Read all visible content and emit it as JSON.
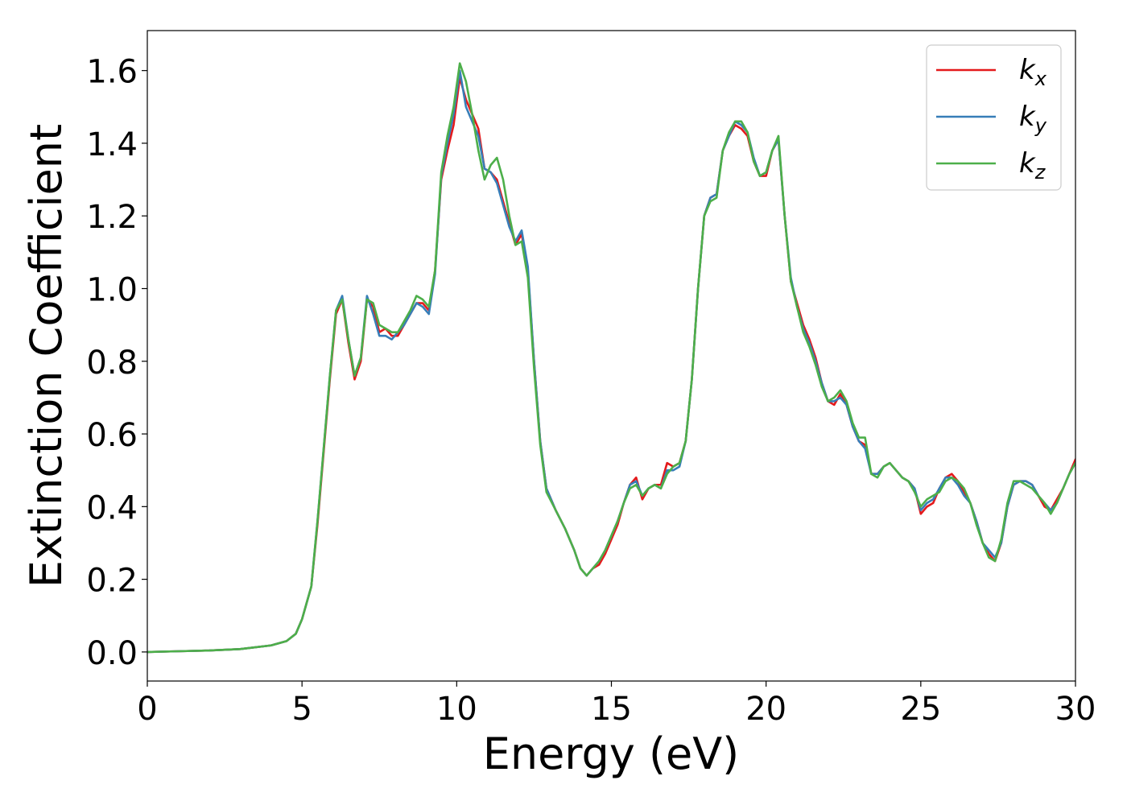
{
  "chart_data": {
    "type": "line",
    "xlabel": "Energy (eV)",
    "ylabel": "Extinction Coefficient",
    "xlim": [
      0,
      30
    ],
    "ylim": [
      -0.08,
      1.71
    ],
    "xticks": [
      0,
      5,
      10,
      15,
      20,
      25,
      30
    ],
    "xtick_labels": [
      "0",
      "5",
      "10",
      "15",
      "20",
      "25",
      "30"
    ],
    "yticks": [
      0.0,
      0.2,
      0.4,
      0.6,
      0.8,
      1.0,
      1.2,
      1.4,
      1.6
    ],
    "ytick_labels": [
      "0.0",
      "0.2",
      "0.4",
      "0.6",
      "0.8",
      "1.0",
      "1.2",
      "1.4",
      "1.6"
    ],
    "grid": false,
    "legend_position": "top-right",
    "x": [
      0,
      1,
      2,
      3,
      4,
      4.5,
      4.8,
      5.0,
      5.3,
      5.5,
      5.7,
      5.9,
      6.1,
      6.3,
      6.5,
      6.7,
      6.9,
      7.1,
      7.3,
      7.5,
      7.7,
      7.9,
      8.1,
      8.3,
      8.5,
      8.7,
      8.9,
      9.1,
      9.3,
      9.5,
      9.7,
      9.9,
      10.1,
      10.3,
      10.5,
      10.7,
      10.9,
      11.1,
      11.3,
      11.5,
      11.7,
      11.9,
      12.1,
      12.3,
      12.5,
      12.7,
      12.9,
      13.2,
      13.5,
      13.8,
      14.0,
      14.2,
      14.4,
      14.6,
      14.8,
      15.0,
      15.2,
      15.4,
      15.6,
      15.8,
      16.0,
      16.2,
      16.4,
      16.6,
      16.8,
      17.0,
      17.2,
      17.4,
      17.6,
      17.8,
      18.0,
      18.2,
      18.4,
      18.6,
      18.8,
      19.0,
      19.2,
      19.4,
      19.6,
      19.8,
      20.0,
      20.2,
      20.4,
      20.6,
      20.8,
      21.0,
      21.2,
      21.4,
      21.6,
      21.8,
      22.0,
      22.2,
      22.4,
      22.6,
      22.8,
      23.0,
      23.2,
      23.4,
      23.6,
      23.8,
      24.0,
      24.2,
      24.4,
      24.6,
      24.8,
      25.0,
      25.2,
      25.4,
      25.6,
      25.8,
      26.0,
      26.2,
      26.4,
      26.6,
      26.8,
      27.0,
      27.2,
      27.4,
      27.6,
      27.8,
      28.0,
      28.2,
      28.4,
      28.6,
      28.8,
      29.0,
      29.2,
      29.4,
      29.6,
      29.8,
      30.0
    ],
    "series": [
      {
        "name": "k_x",
        "color": "#e41a1c",
        "values": [
          0.0,
          0.002,
          0.004,
          0.008,
          0.018,
          0.03,
          0.05,
          0.09,
          0.18,
          0.35,
          0.55,
          0.75,
          0.93,
          0.97,
          0.85,
          0.75,
          0.8,
          0.97,
          0.95,
          0.88,
          0.89,
          0.87,
          0.87,
          0.9,
          0.93,
          0.96,
          0.96,
          0.94,
          1.05,
          1.3,
          1.38,
          1.45,
          1.58,
          1.52,
          1.48,
          1.44,
          1.33,
          1.32,
          1.3,
          1.24,
          1.18,
          1.12,
          1.15,
          1.05,
          0.8,
          0.58,
          0.45,
          0.39,
          0.34,
          0.28,
          0.23,
          0.21,
          0.23,
          0.24,
          0.27,
          0.31,
          0.35,
          0.41,
          0.46,
          0.48,
          0.42,
          0.45,
          0.46,
          0.46,
          0.52,
          0.51,
          0.52,
          0.58,
          0.75,
          1.0,
          1.2,
          1.25,
          1.26,
          1.38,
          1.42,
          1.45,
          1.44,
          1.42,
          1.35,
          1.31,
          1.31,
          1.38,
          1.41,
          1.2,
          1.02,
          0.96,
          0.9,
          0.86,
          0.81,
          0.74,
          0.69,
          0.68,
          0.71,
          0.68,
          0.62,
          0.58,
          0.57,
          0.49,
          0.49,
          0.51,
          0.52,
          0.5,
          0.48,
          0.47,
          0.45,
          0.38,
          0.4,
          0.41,
          0.45,
          0.48,
          0.49,
          0.47,
          0.44,
          0.41,
          0.36,
          0.3,
          0.27,
          0.25,
          0.3,
          0.4,
          0.46,
          0.47,
          0.47,
          0.46,
          0.43,
          0.4,
          0.39,
          0.42,
          0.45,
          0.49,
          0.53
        ]
      },
      {
        "name": "k_y",
        "color": "#377eb8",
        "values": [
          0.0,
          0.002,
          0.004,
          0.008,
          0.018,
          0.03,
          0.05,
          0.09,
          0.18,
          0.36,
          0.56,
          0.76,
          0.94,
          0.98,
          0.86,
          0.76,
          0.81,
          0.98,
          0.93,
          0.87,
          0.87,
          0.86,
          0.88,
          0.9,
          0.93,
          0.96,
          0.95,
          0.93,
          1.04,
          1.31,
          1.4,
          1.48,
          1.6,
          1.5,
          1.46,
          1.42,
          1.33,
          1.32,
          1.29,
          1.23,
          1.17,
          1.13,
          1.16,
          1.06,
          0.8,
          0.58,
          0.45,
          0.39,
          0.34,
          0.28,
          0.23,
          0.21,
          0.23,
          0.25,
          0.28,
          0.32,
          0.36,
          0.41,
          0.46,
          0.47,
          0.43,
          0.45,
          0.46,
          0.45,
          0.5,
          0.5,
          0.51,
          0.58,
          0.75,
          1.0,
          1.2,
          1.25,
          1.26,
          1.38,
          1.42,
          1.46,
          1.45,
          1.43,
          1.36,
          1.31,
          1.32,
          1.38,
          1.41,
          1.2,
          1.03,
          0.95,
          0.89,
          0.85,
          0.8,
          0.74,
          0.69,
          0.69,
          0.7,
          0.68,
          0.62,
          0.58,
          0.56,
          0.49,
          0.49,
          0.51,
          0.52,
          0.5,
          0.48,
          0.47,
          0.45,
          0.39,
          0.41,
          0.42,
          0.45,
          0.48,
          0.48,
          0.46,
          0.43,
          0.41,
          0.36,
          0.3,
          0.28,
          0.26,
          0.3,
          0.4,
          0.46,
          0.47,
          0.47,
          0.46,
          0.43,
          0.41,
          0.39,
          0.41,
          0.45,
          0.49,
          0.52
        ]
      },
      {
        "name": "k_z",
        "color": "#4daf4a",
        "values": [
          0.0,
          0.002,
          0.004,
          0.008,
          0.018,
          0.03,
          0.05,
          0.09,
          0.18,
          0.36,
          0.56,
          0.76,
          0.94,
          0.97,
          0.86,
          0.76,
          0.81,
          0.97,
          0.96,
          0.9,
          0.89,
          0.88,
          0.88,
          0.91,
          0.94,
          0.98,
          0.97,
          0.95,
          1.05,
          1.32,
          1.42,
          1.5,
          1.62,
          1.57,
          1.48,
          1.38,
          1.3,
          1.34,
          1.36,
          1.3,
          1.2,
          1.12,
          1.13,
          1.03,
          0.78,
          0.57,
          0.44,
          0.39,
          0.34,
          0.28,
          0.23,
          0.21,
          0.23,
          0.25,
          0.28,
          0.32,
          0.36,
          0.41,
          0.45,
          0.46,
          0.43,
          0.45,
          0.46,
          0.45,
          0.49,
          0.51,
          0.52,
          0.58,
          0.75,
          1.0,
          1.2,
          1.24,
          1.25,
          1.38,
          1.43,
          1.46,
          1.46,
          1.43,
          1.35,
          1.31,
          1.32,
          1.38,
          1.42,
          1.2,
          1.02,
          0.95,
          0.88,
          0.84,
          0.79,
          0.73,
          0.69,
          0.7,
          0.72,
          0.69,
          0.63,
          0.59,
          0.59,
          0.49,
          0.48,
          0.51,
          0.52,
          0.5,
          0.48,
          0.47,
          0.44,
          0.4,
          0.42,
          0.43,
          0.44,
          0.47,
          0.48,
          0.47,
          0.45,
          0.41,
          0.35,
          0.3,
          0.26,
          0.25,
          0.31,
          0.41,
          0.47,
          0.47,
          0.46,
          0.45,
          0.43,
          0.41,
          0.38,
          0.41,
          0.45,
          0.49,
          0.52
        ]
      }
    ],
    "legend": [
      {
        "main": "k",
        "sub": "x",
        "color": "#e41a1c"
      },
      {
        "main": "k",
        "sub": "y",
        "color": "#377eb8"
      },
      {
        "main": "k",
        "sub": "z",
        "color": "#4daf4a"
      }
    ]
  }
}
